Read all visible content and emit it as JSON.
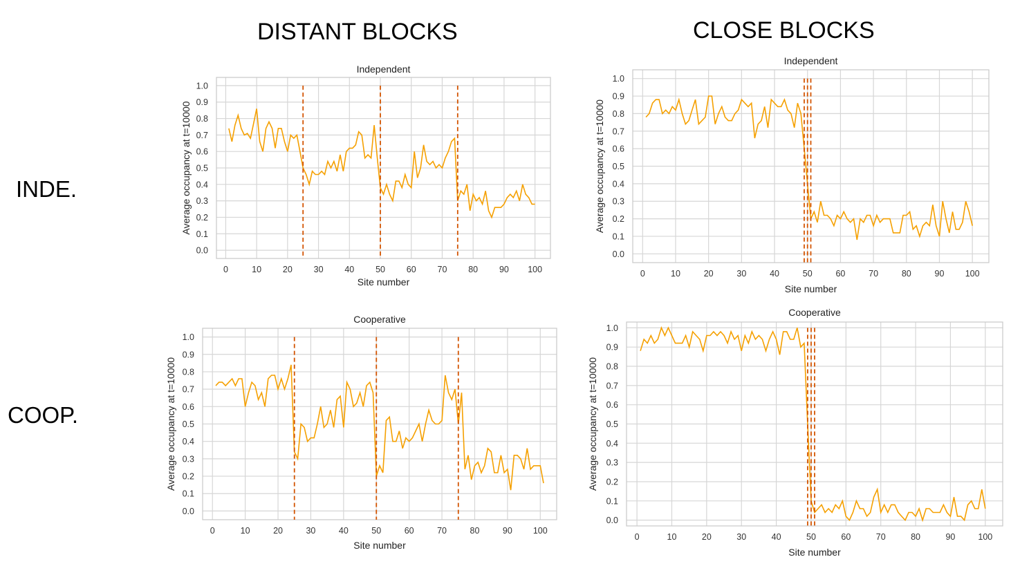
{
  "column_headers": {
    "distant": "DISTANT BLOCKS",
    "close": "CLOSE BLOCKS"
  },
  "row_headers": {
    "independent": "INDE.",
    "cooperative": "COOP."
  },
  "chart_data": [
    {
      "type": "line",
      "title": "Independent",
      "xlabel": "Site number",
      "ylabel": "Average occupancy at t=10000",
      "xlim": [
        -3,
        105
      ],
      "ylim": [
        -0.05,
        1.05
      ],
      "xticks": [
        0,
        10,
        20,
        30,
        40,
        50,
        60,
        70,
        80,
        90,
        100
      ],
      "yticks": [
        0.0,
        0.1,
        0.2,
        0.3,
        0.4,
        0.5,
        0.6,
        0.7,
        0.8,
        0.9,
        1.0
      ],
      "grid": true,
      "block_boundaries": [
        25,
        50,
        75
      ],
      "x_start": 1,
      "values": [
        0.74,
        0.66,
        0.76,
        0.82,
        0.74,
        0.7,
        0.71,
        0.68,
        0.77,
        0.86,
        0.66,
        0.6,
        0.74,
        0.78,
        0.74,
        0.62,
        0.74,
        0.74,
        0.66,
        0.6,
        0.7,
        0.68,
        0.7,
        0.6,
        0.5,
        0.46,
        0.4,
        0.48,
        0.46,
        0.46,
        0.48,
        0.46,
        0.54,
        0.5,
        0.54,
        0.48,
        0.58,
        0.48,
        0.6,
        0.62,
        0.62,
        0.64,
        0.72,
        0.7,
        0.56,
        0.58,
        0.56,
        0.76,
        0.56,
        0.38,
        0.34,
        0.4,
        0.34,
        0.3,
        0.42,
        0.42,
        0.38,
        0.46,
        0.4,
        0.38,
        0.6,
        0.44,
        0.5,
        0.64,
        0.54,
        0.52,
        0.54,
        0.5,
        0.52,
        0.5,
        0.56,
        0.6,
        0.66,
        0.68,
        0.3,
        0.36,
        0.34,
        0.4,
        0.24,
        0.34,
        0.3,
        0.32,
        0.28,
        0.36,
        0.24,
        0.2,
        0.26,
        0.26,
        0.26,
        0.28,
        0.32,
        0.34,
        0.32,
        0.36,
        0.3,
        0.4,
        0.34,
        0.32,
        0.28,
        0.28
      ]
    },
    {
      "type": "line",
      "title": "Independent",
      "xlabel": "Site number",
      "ylabel": "Average occupancy at t=10000",
      "xlim": [
        -3,
        105
      ],
      "ylim": [
        -0.05,
        1.05
      ],
      "xticks": [
        0,
        10,
        20,
        30,
        40,
        50,
        60,
        70,
        80,
        90,
        100
      ],
      "yticks": [
        0.0,
        0.1,
        0.2,
        0.3,
        0.4,
        0.5,
        0.6,
        0.7,
        0.8,
        0.9,
        1.0
      ],
      "grid": true,
      "block_boundaries": [
        49,
        50,
        51
      ],
      "x_start": 1,
      "values": [
        0.78,
        0.8,
        0.86,
        0.88,
        0.88,
        0.8,
        0.82,
        0.8,
        0.84,
        0.82,
        0.88,
        0.8,
        0.74,
        0.76,
        0.82,
        0.88,
        0.74,
        0.76,
        0.78,
        0.9,
        0.9,
        0.74,
        0.8,
        0.84,
        0.78,
        0.76,
        0.76,
        0.8,
        0.82,
        0.88,
        0.86,
        0.84,
        0.86,
        0.66,
        0.74,
        0.76,
        0.84,
        0.72,
        0.88,
        0.86,
        0.84,
        0.84,
        0.88,
        0.82,
        0.8,
        0.72,
        0.86,
        0.8,
        0.6,
        0.4,
        0.2,
        0.24,
        0.18,
        0.3,
        0.22,
        0.22,
        0.2,
        0.16,
        0.22,
        0.2,
        0.24,
        0.2,
        0.18,
        0.2,
        0.08,
        0.2,
        0.18,
        0.22,
        0.22,
        0.16,
        0.22,
        0.18,
        0.2,
        0.2,
        0.2,
        0.12,
        0.12,
        0.12,
        0.22,
        0.22,
        0.24,
        0.14,
        0.16,
        0.1,
        0.16,
        0.18,
        0.16,
        0.28,
        0.16,
        0.1,
        0.3,
        0.2,
        0.12,
        0.24,
        0.14,
        0.14,
        0.18,
        0.3,
        0.24,
        0.16
      ]
    },
    {
      "type": "line",
      "title": "Cooperative",
      "xlabel": "Site number",
      "ylabel": "Average occupancy at t=10000",
      "xlim": [
        -3,
        105
      ],
      "ylim": [
        -0.05,
        1.05
      ],
      "xticks": [
        0,
        10,
        20,
        30,
        40,
        50,
        60,
        70,
        80,
        90,
        100
      ],
      "yticks": [
        0.0,
        0.1,
        0.2,
        0.3,
        0.4,
        0.5,
        0.6,
        0.7,
        0.8,
        0.9,
        1.0
      ],
      "grid": true,
      "block_boundaries": [
        25,
        50,
        75
      ],
      "x_start": 1,
      "values": [
        0.72,
        0.74,
        0.74,
        0.72,
        0.74,
        0.76,
        0.72,
        0.76,
        0.76,
        0.6,
        0.68,
        0.74,
        0.72,
        0.64,
        0.68,
        0.6,
        0.76,
        0.78,
        0.78,
        0.7,
        0.76,
        0.7,
        0.76,
        0.84,
        0.34,
        0.3,
        0.5,
        0.48,
        0.4,
        0.42,
        0.42,
        0.5,
        0.6,
        0.48,
        0.5,
        0.58,
        0.48,
        0.64,
        0.66,
        0.48,
        0.74,
        0.7,
        0.6,
        0.62,
        0.68,
        0.6,
        0.72,
        0.74,
        0.68,
        0.2,
        0.26,
        0.22,
        0.52,
        0.54,
        0.4,
        0.4,
        0.46,
        0.36,
        0.42,
        0.4,
        0.42,
        0.46,
        0.5,
        0.4,
        0.5,
        0.58,
        0.52,
        0.5,
        0.5,
        0.52,
        0.78,
        0.68,
        0.64,
        0.7,
        0.5,
        0.68,
        0.24,
        0.32,
        0.18,
        0.26,
        0.28,
        0.22,
        0.26,
        0.36,
        0.34,
        0.22,
        0.22,
        0.32,
        0.22,
        0.24,
        0.12,
        0.32,
        0.32,
        0.3,
        0.24,
        0.36,
        0.24,
        0.26,
        0.26,
        0.26,
        0.16
      ]
    },
    {
      "type": "line",
      "title": "Cooperative",
      "xlabel": "Site number",
      "ylabel": "Average occupancy at t=10000",
      "xlim": [
        -3,
        105
      ],
      "ylim": [
        -0.03,
        1.03
      ],
      "xticks": [
        0,
        10,
        20,
        30,
        40,
        50,
        60,
        70,
        80,
        90,
        100
      ],
      "yticks": [
        0.0,
        0.1,
        0.2,
        0.3,
        0.4,
        0.5,
        0.6,
        0.7,
        0.8,
        0.9,
        1.0
      ],
      "grid": true,
      "block_boundaries": [
        49,
        50,
        51
      ],
      "x_start": 1,
      "values": [
        0.88,
        0.94,
        0.92,
        0.96,
        0.92,
        0.94,
        1.0,
        0.96,
        1.0,
        0.96,
        0.92,
        0.92,
        0.92,
        0.96,
        0.9,
        0.98,
        0.96,
        0.94,
        0.88,
        0.96,
        0.96,
        0.98,
        0.96,
        0.98,
        0.96,
        0.92,
        0.98,
        0.94,
        0.96,
        0.88,
        0.96,
        0.92,
        0.98,
        0.94,
        0.96,
        0.94,
        0.88,
        0.94,
        0.98,
        0.94,
        0.86,
        0.98,
        0.98,
        0.94,
        0.94,
        1.0,
        0.9,
        0.92,
        0.5,
        0.1,
        0.04,
        0.06,
        0.08,
        0.04,
        0.06,
        0.04,
        0.08,
        0.06,
        0.1,
        0.02,
        0.0,
        0.04,
        0.1,
        0.06,
        0.06,
        0.02,
        0.04,
        0.12,
        0.16,
        0.04,
        0.08,
        0.04,
        0.08,
        0.08,
        0.04,
        0.02,
        0.0,
        0.04,
        0.04,
        0.02,
        0.06,
        0.0,
        0.06,
        0.06,
        0.04,
        0.04,
        0.04,
        0.08,
        0.04,
        0.02,
        0.12,
        0.02,
        0.02,
        0.0,
        0.08,
        0.1,
        0.06,
        0.06,
        0.16,
        0.06
      ]
    }
  ]
}
